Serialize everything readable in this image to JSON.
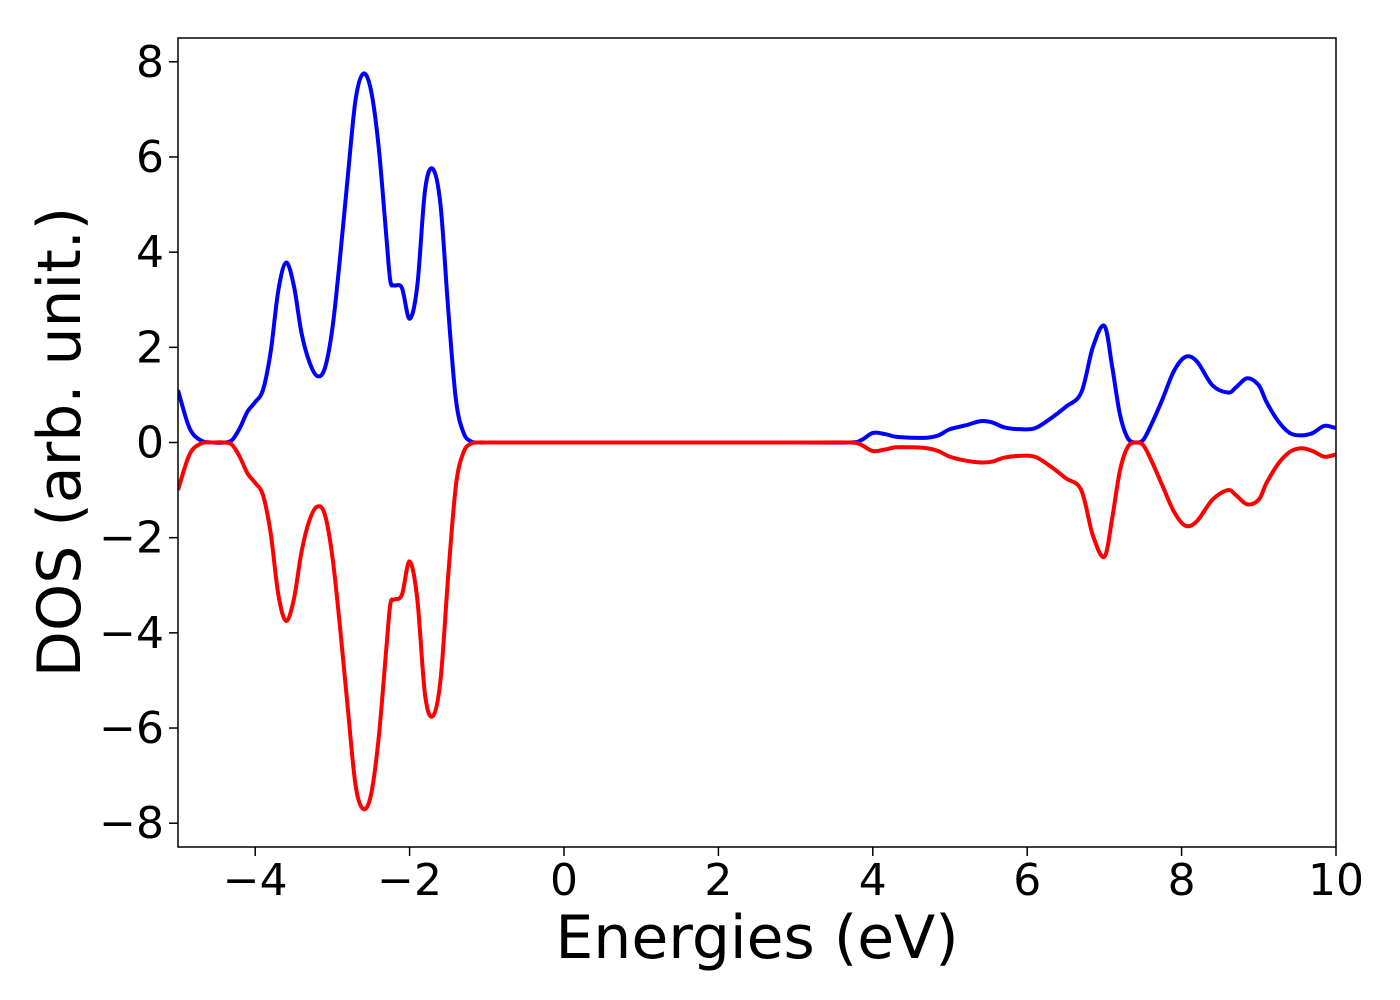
{
  "chart_data": {
    "type": "line",
    "title": "",
    "xlabel": "Energies (eV)",
    "ylabel": "DOS (arb. unit.)",
    "xlim": [
      -5,
      10
    ],
    "ylim": [
      -8.5,
      8.5
    ],
    "xticks": [
      -4,
      -2,
      0,
      2,
      4,
      6,
      8,
      10
    ],
    "xtick_labels": [
      "−4",
      "−2",
      "0",
      "2",
      "4",
      "6",
      "8",
      "10"
    ],
    "yticks": [
      8,
      6,
      4,
      2,
      0,
      -2,
      -4,
      -6,
      -8
    ],
    "ytick_labels": [
      "8",
      "6",
      "4",
      "2",
      "0",
      "−2",
      "−4",
      "−6",
      "−8"
    ],
    "grid": false,
    "legend": "none",
    "series": [
      {
        "color": "#0000ff",
        "x": [
          -5.0,
          -4.85,
          -4.7,
          -4.55,
          -4.4,
          -4.3,
          -4.2,
          -4.1,
          -4.0,
          -3.9,
          -3.8,
          -3.7,
          -3.6,
          -3.5,
          -3.4,
          -3.3,
          -3.2,
          -3.1,
          -3.0,
          -2.9,
          -2.8,
          -2.7,
          -2.6,
          -2.5,
          -2.4,
          -2.3,
          -2.25,
          -2.2,
          -2.1,
          -2.0,
          -1.9,
          -1.8,
          -1.7,
          -1.6,
          -1.5,
          -1.4,
          -1.3,
          -1.2,
          -1.1,
          -1.0,
          -0.9,
          -0.8,
          -0.7,
          -0.6,
          -0.5,
          0.0,
          3.0,
          3.7,
          3.85,
          4.0,
          4.15,
          4.3,
          4.5,
          4.7,
          4.85,
          5.0,
          5.2,
          5.4,
          5.55,
          5.7,
          5.9,
          6.1,
          6.3,
          6.5,
          6.7,
          6.85,
          7.0,
          7.1,
          7.2,
          7.3,
          7.4,
          7.5,
          7.6,
          7.75,
          7.9,
          8.05,
          8.2,
          8.4,
          8.6,
          8.7,
          8.85,
          9.0,
          9.1,
          9.25,
          9.4,
          9.55,
          9.7,
          9.85,
          10.0
        ],
        "values": [
          1.1,
          0.3,
          0.04,
          0.0,
          0.0,
          0.05,
          0.3,
          0.65,
          0.85,
          1.1,
          1.9,
          3.2,
          3.78,
          3.3,
          2.3,
          1.7,
          1.4,
          1.55,
          2.4,
          3.9,
          5.6,
          7.2,
          7.75,
          7.4,
          6.2,
          4.3,
          3.4,
          3.3,
          3.25,
          2.6,
          3.3,
          5.3,
          5.75,
          5.0,
          2.8,
          0.9,
          0.2,
          0.02,
          0.0,
          0.0,
          0.0,
          0.0,
          0.0,
          0.0,
          0.0,
          0.0,
          0.0,
          0.0,
          0.05,
          0.2,
          0.18,
          0.12,
          0.1,
          0.1,
          0.15,
          0.28,
          0.36,
          0.45,
          0.42,
          0.32,
          0.28,
          0.3,
          0.5,
          0.75,
          1.05,
          2.0,
          2.45,
          1.6,
          0.6,
          0.1,
          0.0,
          0.05,
          0.35,
          0.9,
          1.5,
          1.8,
          1.7,
          1.2,
          1.05,
          1.15,
          1.35,
          1.2,
          0.85,
          0.45,
          0.2,
          0.15,
          0.2,
          0.35,
          0.3
        ]
      },
      {
        "color": "#ff0000",
        "x": [
          -5.0,
          -4.85,
          -4.7,
          -4.55,
          -4.4,
          -4.3,
          -4.2,
          -4.1,
          -4.0,
          -3.9,
          -3.8,
          -3.7,
          -3.6,
          -3.5,
          -3.4,
          -3.3,
          -3.2,
          -3.1,
          -3.0,
          -2.9,
          -2.8,
          -2.7,
          -2.6,
          -2.5,
          -2.4,
          -2.3,
          -2.25,
          -2.2,
          -2.1,
          -2.0,
          -1.9,
          -1.8,
          -1.7,
          -1.6,
          -1.5,
          -1.4,
          -1.3,
          -1.2,
          -1.1,
          -1.0,
          -0.9,
          -0.8,
          -0.7,
          -0.6,
          -0.5,
          0.0,
          3.0,
          3.7,
          3.85,
          4.0,
          4.15,
          4.3,
          4.5,
          4.7,
          4.85,
          5.0,
          5.2,
          5.4,
          5.55,
          5.7,
          5.9,
          6.1,
          6.3,
          6.5,
          6.7,
          6.85,
          7.0,
          7.1,
          7.2,
          7.3,
          7.4,
          7.5,
          7.6,
          7.75,
          7.9,
          8.05,
          8.2,
          8.4,
          8.6,
          8.7,
          8.85,
          9.0,
          9.1,
          9.25,
          9.4,
          9.55,
          9.7,
          9.85,
          10.0
        ],
        "values": [
          -1.0,
          -0.25,
          -0.02,
          0.0,
          0.0,
          -0.05,
          -0.3,
          -0.65,
          -0.85,
          -1.1,
          -1.9,
          -3.2,
          -3.75,
          -3.3,
          -2.3,
          -1.65,
          -1.35,
          -1.5,
          -2.4,
          -3.9,
          -5.6,
          -7.2,
          -7.7,
          -7.4,
          -6.2,
          -4.3,
          -3.4,
          -3.3,
          -3.2,
          -2.5,
          -3.3,
          -5.3,
          -5.75,
          -5.0,
          -2.8,
          -0.9,
          -0.2,
          -0.02,
          0.0,
          0.0,
          0.0,
          0.0,
          0.0,
          0.0,
          0.0,
          0.0,
          0.0,
          0.0,
          -0.05,
          -0.18,
          -0.15,
          -0.1,
          -0.1,
          -0.12,
          -0.18,
          -0.3,
          -0.38,
          -0.42,
          -0.4,
          -0.32,
          -0.28,
          -0.3,
          -0.5,
          -0.75,
          -1.0,
          -1.95,
          -2.4,
          -1.6,
          -0.6,
          -0.1,
          0.0,
          -0.05,
          -0.35,
          -0.9,
          -1.45,
          -1.75,
          -1.65,
          -1.2,
          -1.0,
          -1.1,
          -1.3,
          -1.2,
          -0.85,
          -0.45,
          -0.2,
          -0.12,
          -0.18,
          -0.3,
          -0.25
        ]
      }
    ]
  }
}
